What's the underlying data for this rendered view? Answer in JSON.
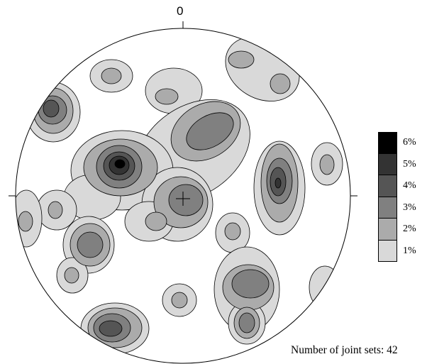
{
  "diagram": {
    "north_label": "0",
    "caption": "Number of joint sets: 42",
    "legend": [
      {
        "label": "6%",
        "color": "#000000"
      },
      {
        "label": "5%",
        "color": "#333333"
      },
      {
        "label": "4%",
        "color": "#555555"
      },
      {
        "label": "3%",
        "color": "#808080"
      },
      {
        "label": "2%",
        "color": "#ababab"
      },
      {
        "label": "1%",
        "color": "#d9d9d9"
      }
    ]
  }
}
